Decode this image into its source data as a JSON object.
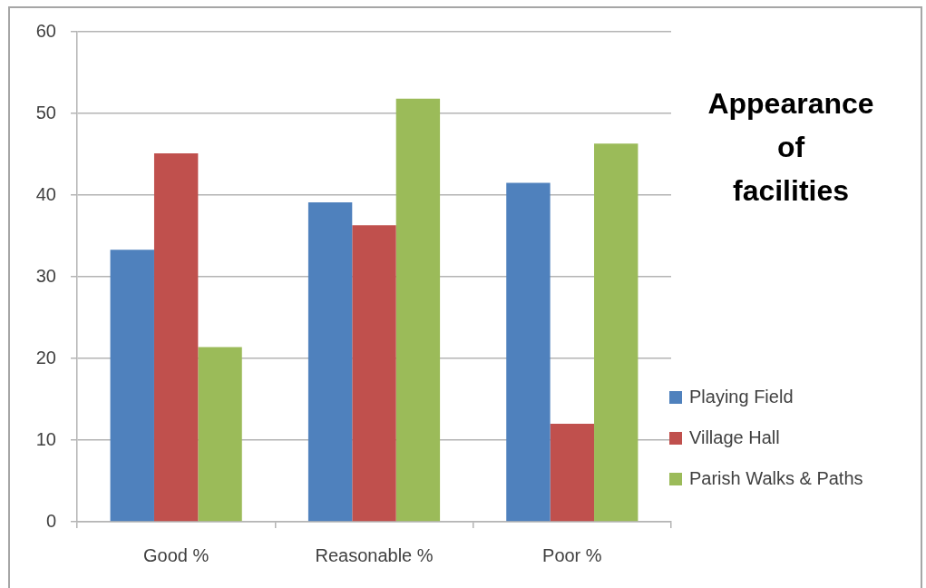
{
  "chart_data": {
    "type": "bar",
    "title": "Appearance of facilities",
    "categories": [
      "Good %",
      "Reasonable %",
      "Poor %"
    ],
    "series": [
      {
        "name": "Playing Field",
        "color": "#4f81bd",
        "values": [
          33.3,
          39.1,
          41.5
        ]
      },
      {
        "name": "Village Hall",
        "color": "#c0504d",
        "values": [
          45.1,
          36.3,
          12.0
        ]
      },
      {
        "name": "Parish Walks & Paths",
        "color": "#9bbb59",
        "values": [
          21.4,
          51.8,
          46.3
        ]
      }
    ],
    "ylim": [
      0,
      60
    ],
    "yticks": [
      0,
      10,
      20,
      30,
      40,
      50,
      60
    ],
    "grid": "y",
    "legend": "right"
  }
}
